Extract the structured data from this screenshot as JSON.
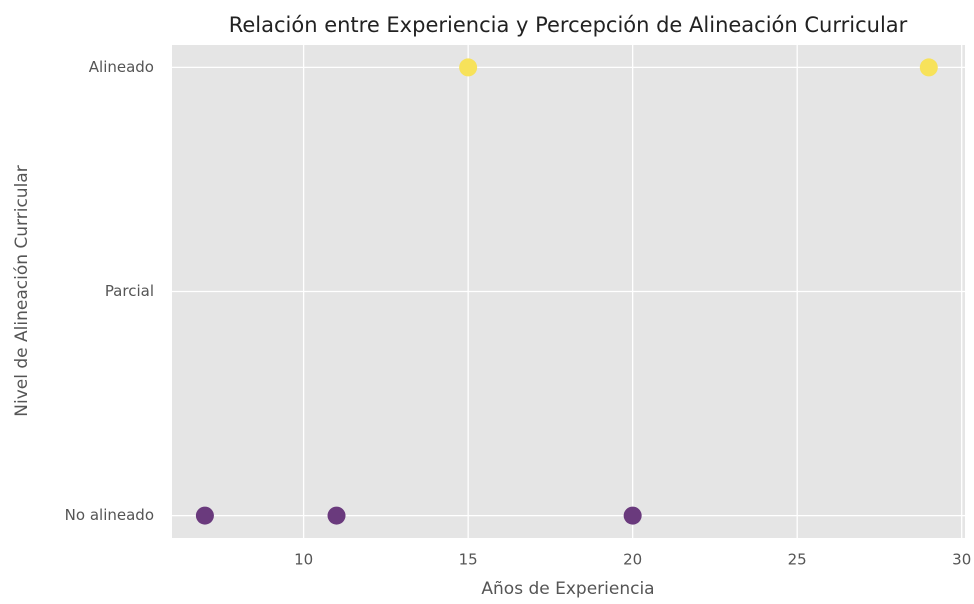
{
  "chart_data": {
    "type": "scatter",
    "title": "Relación entre Experiencia y Percepción de Alineación Curricular",
    "x_label": "Años de Experiencia",
    "y_label": "Nivel de Alineación Curricular",
    "x": [
      7,
      11,
      20,
      15,
      29
    ],
    "values": [
      0,
      0,
      0,
      2,
      2
    ],
    "point_colors": [
      "#6a3a7d",
      "#6a3a7d",
      "#6a3a7d",
      "#f7e25a",
      "#f7e25a"
    ],
    "xlim": [
      6,
      30.1
    ],
    "xticks": [
      10,
      15,
      20,
      25,
      30
    ],
    "ylim": [
      -0.1,
      2.1
    ],
    "yticks": [
      {
        "value": 0,
        "label": "No alineado"
      },
      {
        "value": 1,
        "label": "Parcial"
      },
      {
        "value": 2,
        "label": "Alineado"
      }
    ],
    "grid": true
  }
}
